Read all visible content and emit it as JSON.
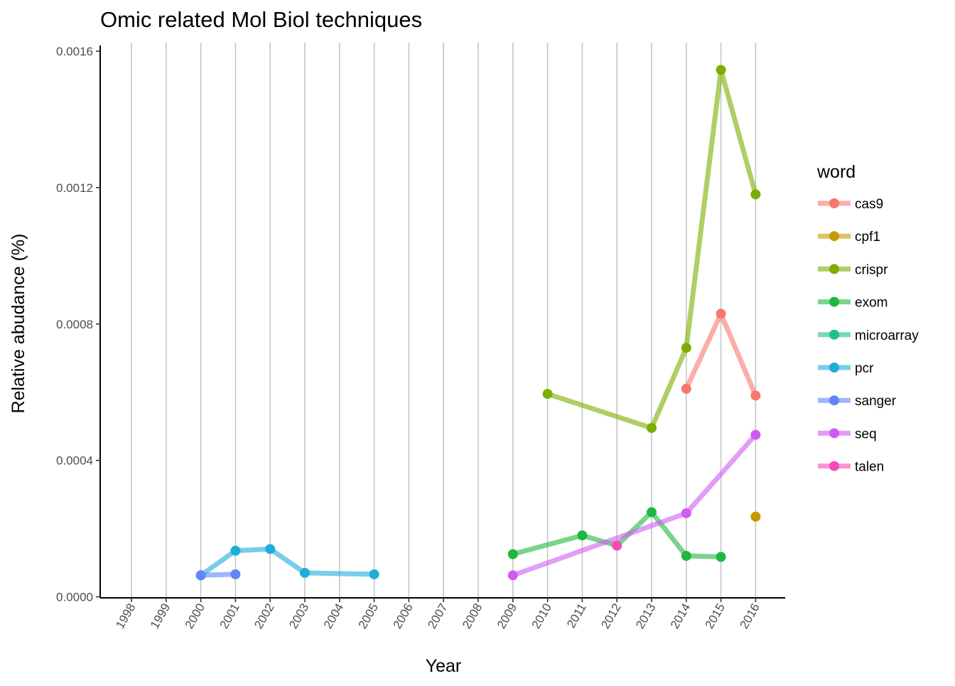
{
  "chart_data": {
    "type": "line",
    "title": "Omic related Mol Biol techniques",
    "xlabel": "Year",
    "ylabel": "Relative abudance (%)",
    "x": [
      "1998",
      "1999",
      "2000",
      "2001",
      "2002",
      "2003",
      "2004",
      "2005",
      "2006",
      "2007",
      "2008",
      "2009",
      "2010",
      "2011",
      "2012",
      "2013",
      "2014",
      "2015",
      "2016"
    ],
    "ylim": [
      0,
      0.0016
    ],
    "yticks": [
      "0.0000",
      "0.0004",
      "0.0008",
      "0.0012",
      "0.0016"
    ],
    "ytick_values": [
      0,
      0.0004,
      0.0008,
      0.0012,
      0.0016
    ],
    "grid": "vertical",
    "legend": {
      "title": "word",
      "position": "right"
    },
    "series": [
      {
        "name": "cas9",
        "color": "#F8766D",
        "points": [
          [
            "2014",
            0.00061
          ],
          [
            "2015",
            0.00083
          ],
          [
            "2016",
            0.00059
          ]
        ]
      },
      {
        "name": "cpf1",
        "color": "#C49A00",
        "points": [
          [
            "2016",
            0.000235
          ]
        ]
      },
      {
        "name": "crispr",
        "color": "#7CAE00",
        "points": [
          [
            "2010",
            0.000595
          ],
          [
            "2013",
            0.000495
          ],
          [
            "2014",
            0.00073
          ],
          [
            "2015",
            0.001545
          ],
          [
            "2016",
            0.00118
          ]
        ]
      },
      {
        "name": "exom",
        "color": "#1FB73F",
        "points": [
          [
            "2009",
            0.000125
          ],
          [
            "2011",
            0.00018
          ],
          [
            "2012",
            0.00015
          ],
          [
            "2013",
            0.000248
          ],
          [
            "2014",
            0.00012
          ],
          [
            "2015",
            0.000117
          ]
        ]
      },
      {
        "name": "microarray",
        "color": "#22BE8E",
        "points": []
      },
      {
        "name": "pcr",
        "color": "#1EADDB",
        "points": [
          [
            "2000",
            6.3e-05
          ],
          [
            "2001",
            0.000135
          ],
          [
            "2002",
            0.00014
          ],
          [
            "2003",
            7e-05
          ],
          [
            "2005",
            6.6e-05
          ]
        ]
      },
      {
        "name": "sanger",
        "color": "#5F86F6",
        "points": [
          [
            "2000",
            6.3e-05
          ],
          [
            "2001",
            6.6e-05
          ]
        ]
      },
      {
        "name": "seq",
        "color": "#D05BF2",
        "points": [
          [
            "2009",
            6.3e-05
          ],
          [
            "2014",
            0.000245
          ],
          [
            "2016",
            0.000475
          ]
        ]
      },
      {
        "name": "talen",
        "color": "#F64BB2",
        "points": [
          [
            "2012",
            0.00015
          ]
        ]
      }
    ]
  }
}
